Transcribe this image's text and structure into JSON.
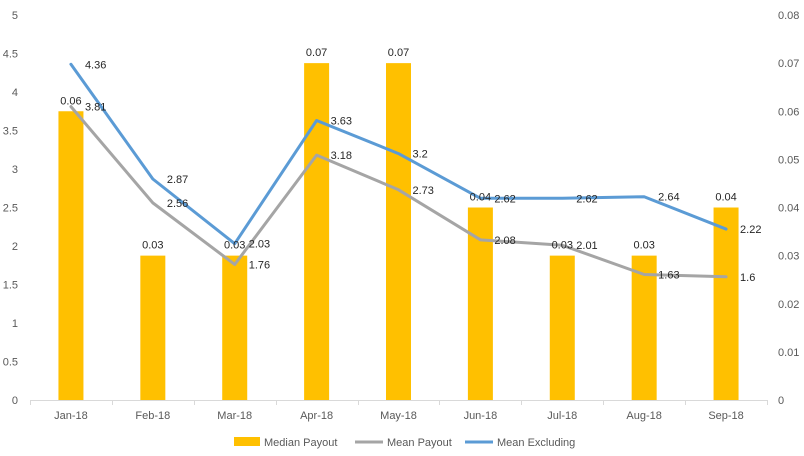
{
  "chart_data": {
    "type": "bar+line",
    "categories": [
      "Jan-18",
      "Feb-18",
      "Mar-18",
      "Apr-18",
      "May-18",
      "Jun-18",
      "Jul-18",
      "Aug-18",
      "Sep-18"
    ],
    "series": [
      {
        "name": "Median Payout",
        "type": "bar",
        "axis": "right",
        "values": [
          0.06,
          0.03,
          0.03,
          0.07,
          0.07,
          0.04,
          0.03,
          0.03,
          0.04
        ],
        "labels": [
          "0.06",
          "0.03",
          "0.03",
          "0.07",
          "0.07",
          "0.04",
          "0.03",
          "0.03",
          "0.04"
        ],
        "color": "#FFC000"
      },
      {
        "name": "Mean Payout",
        "type": "line",
        "axis": "left",
        "values": [
          3.81,
          2.56,
          1.76,
          3.18,
          2.73,
          2.08,
          2.01,
          1.63,
          1.6
        ],
        "labels": [
          "3.81",
          "2.56",
          "1.76",
          "3.18",
          "2.73",
          "2.08",
          "2.01",
          "1.63",
          "1.6"
        ],
        "color": "#A5A5A5"
      },
      {
        "name": "Mean Excluding",
        "type": "line",
        "axis": "left",
        "values": [
          4.36,
          2.87,
          2.03,
          3.63,
          3.2,
          2.62,
          2.62,
          2.64,
          2.22
        ],
        "labels": [
          "4.36",
          "2.87",
          "2.03",
          "3.63",
          "3.2",
          "2.62",
          "2.62",
          "2.64",
          "2.22"
        ],
        "color": "#5B9BD5"
      }
    ],
    "y_left": {
      "lim": [
        0,
        5
      ],
      "ticks": [
        0,
        0.5,
        1,
        1.5,
        2,
        2.5,
        3,
        3.5,
        4,
        4.5,
        5
      ],
      "tick_labels": [
        "0",
        "0.5",
        "1",
        "1.5",
        "2",
        "2.5",
        "3",
        "3.5",
        "4",
        "4.5",
        "5"
      ]
    },
    "y_right": {
      "lim": [
        0,
        0.08
      ],
      "ticks": [
        0,
        0.01,
        0.02,
        0.03,
        0.04,
        0.05,
        0.06,
        0.07,
        0.08
      ],
      "tick_labels": [
        "0",
        "0.01",
        "0.02",
        "0.03",
        "0.04",
        "0.05",
        "0.06",
        "0.07",
        "0.08"
      ]
    },
    "grid": false,
    "legend_position": "bottom"
  }
}
